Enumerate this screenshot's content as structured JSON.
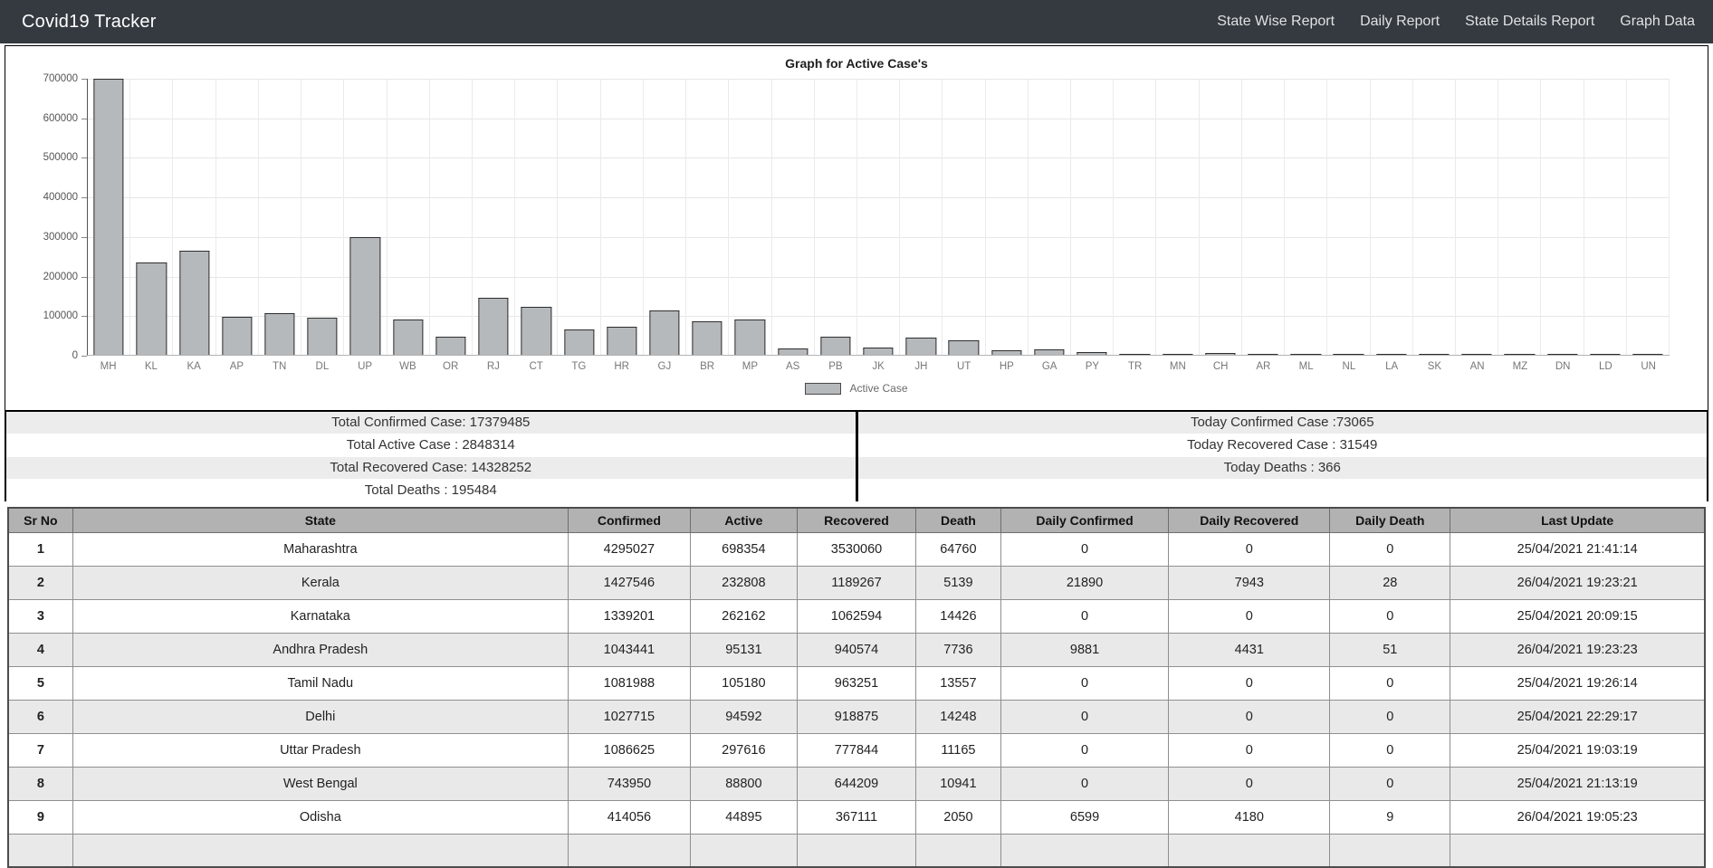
{
  "navbar": {
    "brand": "Covid19 Tracker",
    "links": [
      {
        "label": "State Wise Report"
      },
      {
        "label": "Daily Report"
      },
      {
        "label": "State Details Report"
      },
      {
        "label": "Graph Data"
      }
    ]
  },
  "chart_data": {
    "type": "bar",
    "title": "Graph for Active Case's",
    "legend": "Active Case",
    "bar_color": "#b6b9bc",
    "bar_border_color": "#2e2e2e",
    "ylim": [
      0,
      700000
    ],
    "ytick_step": 100000,
    "ytick_labels": [
      "700000",
      "600000",
      "500000",
      "400000",
      "300000",
      "200000",
      "100000",
      "0"
    ],
    "grid": true,
    "legend_position": "bottom",
    "categories": [
      "MH",
      "KL",
      "KA",
      "AP",
      "TN",
      "DL",
      "UP",
      "WB",
      "OR",
      "RJ",
      "CT",
      "TG",
      "HR",
      "GJ",
      "BR",
      "MP",
      "AS",
      "PB",
      "JK",
      "JH",
      "UT",
      "HP",
      "GA",
      "PY",
      "TR",
      "MN",
      "CH",
      "AR",
      "ML",
      "NL",
      "LA",
      "SK",
      "AN",
      "MZ",
      "DN",
      "LD",
      "UN"
    ],
    "values": [
      698354,
      232808,
      262162,
      95131,
      105180,
      94592,
      297616,
      88800,
      44895,
      145000,
      121000,
      63000,
      70000,
      112000,
      84000,
      89000,
      15000,
      45000,
      19000,
      43000,
      37000,
      12000,
      14500,
      6000,
      2500,
      1500,
      4500,
      800,
      2000,
      900,
      1900,
      1000,
      300,
      800,
      400,
      700,
      100
    ]
  },
  "summary": {
    "left": [
      "Total Confirmed Case: 17379485",
      "Total Active Case : 2848314",
      "Total Recovered Case: 14328252",
      "Total Deaths : 195484"
    ],
    "right": [
      "Today Confirmed Case :73065",
      "Today Recovered Case : 31549",
      "Today Deaths : 366",
      ""
    ]
  },
  "table": {
    "headers": [
      "Sr No",
      "State",
      "Confirmed",
      "Active",
      "Recovered",
      "Death",
      "Daily Confirmed",
      "Daily Recovered",
      "Daily Death",
      "Last Update"
    ],
    "col_widths": [
      "3.8%",
      "29.2%",
      "7.2%",
      "6.3%",
      "7.0%",
      "5.0%",
      "9.9%",
      "9.5%",
      "7.1%",
      "15%"
    ],
    "rows": [
      [
        "1",
        "Maharashtra",
        "4295027",
        "698354",
        "3530060",
        "64760",
        "0",
        "0",
        "0",
        "25/04/2021 21:41:14"
      ],
      [
        "2",
        "Kerala",
        "1427546",
        "232808",
        "1189267",
        "5139",
        "21890",
        "7943",
        "28",
        "26/04/2021 19:23:21"
      ],
      [
        "3",
        "Karnataka",
        "1339201",
        "262162",
        "1062594",
        "14426",
        "0",
        "0",
        "0",
        "25/04/2021 20:09:15"
      ],
      [
        "4",
        "Andhra Pradesh",
        "1043441",
        "95131",
        "940574",
        "7736",
        "9881",
        "4431",
        "51",
        "26/04/2021 19:23:23"
      ],
      [
        "5",
        "Tamil Nadu",
        "1081988",
        "105180",
        "963251",
        "13557",
        "0",
        "0",
        "0",
        "25/04/2021 19:26:14"
      ],
      [
        "6",
        "Delhi",
        "1027715",
        "94592",
        "918875",
        "14248",
        "0",
        "0",
        "0",
        "25/04/2021 22:29:17"
      ],
      [
        "7",
        "Uttar Pradesh",
        "1086625",
        "297616",
        "777844",
        "11165",
        "0",
        "0",
        "0",
        "25/04/2021 19:03:19"
      ],
      [
        "8",
        "West Bengal",
        "743950",
        "88800",
        "644209",
        "10941",
        "0",
        "0",
        "0",
        "25/04/2021 21:13:19"
      ],
      [
        "9",
        "Odisha",
        "414056",
        "44895",
        "367111",
        "2050",
        "6599",
        "4180",
        "9",
        "26/04/2021 19:05:23"
      ]
    ]
  }
}
